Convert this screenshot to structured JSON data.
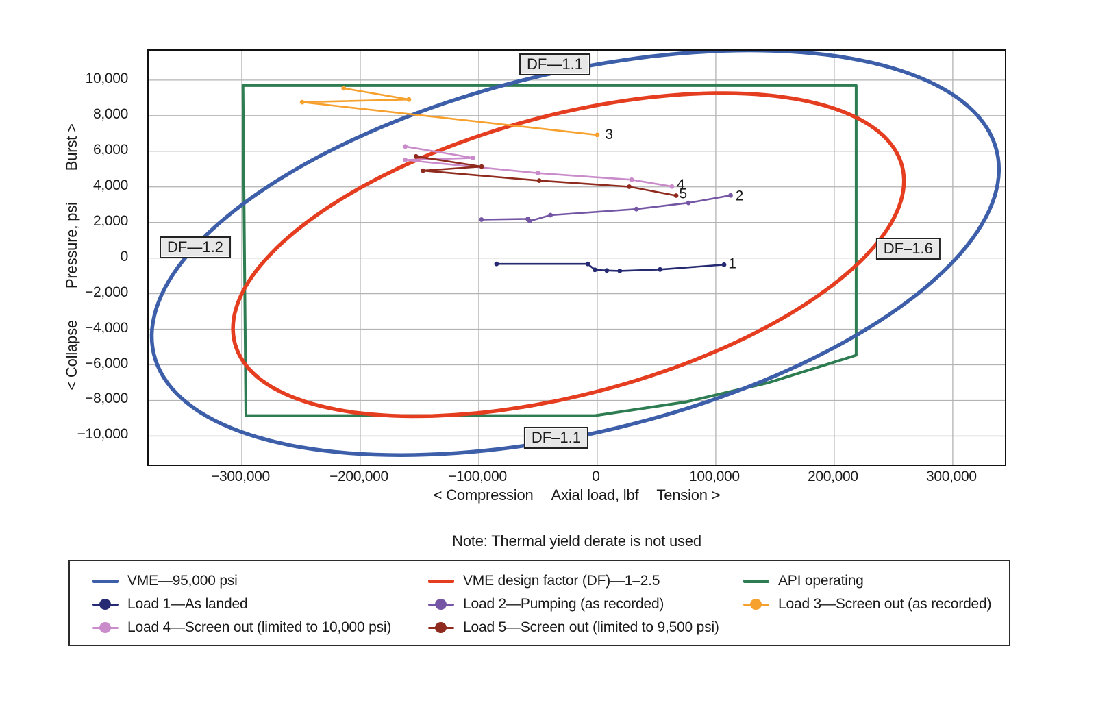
{
  "figure": {
    "note": "Note: Thermal yield derate is not used"
  },
  "axes": {
    "x": {
      "min": -378600,
      "max": 344000,
      "ticks": [
        -300000,
        -200000,
        -100000,
        0,
        100000,
        200000,
        300000
      ],
      "tick_labels": [
        "−300,000",
        "−200,000",
        "−100,000",
        "0",
        "100,000",
        "200,000",
        "300,000"
      ],
      "title_parts": [
        "< Compression",
        "Axial load, lbf",
        "Tension >"
      ]
    },
    "y": {
      "min": -11600,
      "max": 11650,
      "ticks": [
        10000,
        8000,
        6000,
        4000,
        2000,
        0,
        -2000,
        -4000,
        -6000,
        -8000,
        -10000
      ],
      "tick_labels": [
        "10,000",
        "8,000",
        "6,000",
        "4,000",
        "2,000",
        "0",
        "−2,000",
        "−4,000",
        "−6,000",
        "−8,000",
        "−10,000"
      ],
      "title_parts": [
        "< Collapse",
        "Pressure, psi",
        "Burst >"
      ]
    },
    "grid_color": "#b3b3b3"
  },
  "chart_data": {
    "type": "line",
    "title": "",
    "xlabel": "Axial load, lbf",
    "ylabel": "Pressure, psi",
    "xlim": [
      -378600,
      344000
    ],
    "ylim": [
      -11600,
      11650
    ],
    "grid": true,
    "legend_position": "bottom",
    "envelopes": [
      {
        "name": "VME—95,000 psi",
        "color": "#3d5fa9",
        "shape": "ellipse",
        "stroke_width": 5.5,
        "center": [
          -18500,
          300
        ],
        "u": [
          355700,
          5700
        ],
        "v": [
          35600,
          -9835
        ]
      },
      {
        "name": "VME design factor (DF)—1–2.5",
        "color": "#e53d20",
        "shape": "ellipse",
        "stroke_width": 5.5,
        "center": [
          -24300,
          190
        ],
        "u": [
          281500,
          4990
        ],
        "v": [
          30400,
          -7580
        ]
      },
      {
        "name": "API operating",
        "color": "#2e7d52",
        "shape": "polygon",
        "stroke_width": 4,
        "points": [
          [
            -299000,
            9690
          ],
          [
            218500,
            9690
          ],
          [
            218500,
            -5460
          ],
          [
            144500,
            -7000
          ],
          [
            75000,
            -8080
          ],
          [
            -2000,
            -8850
          ],
          [
            -296500,
            -8850
          ]
        ]
      }
    ],
    "loads": [
      {
        "name": "Load 1—As landed",
        "color": "#262a72",
        "end_label": "1",
        "label_at": [
          114000,
          -300
        ],
        "points": [
          [
            -85000,
            -330
          ],
          [
            -8000,
            -330
          ],
          [
            -2000,
            -660
          ],
          [
            8000,
            -700
          ],
          [
            19000,
            -720
          ],
          [
            53000,
            -640
          ],
          [
            107000,
            -370
          ]
        ]
      },
      {
        "name": "Load 2—Pumping (as recorded)",
        "color": "#7456a4",
        "end_label": "2",
        "label_at": [
          120000,
          3500
        ],
        "points": [
          [
            -97700,
            2160
          ],
          [
            -58600,
            2200
          ],
          [
            -57000,
            2080
          ],
          [
            -39500,
            2410
          ],
          [
            33000,
            2750
          ],
          [
            77000,
            3100
          ],
          [
            112500,
            3520
          ]
        ]
      },
      {
        "name": "Load 3—Screen out (as recorded)",
        "color": "#f6a02d",
        "end_label": "3",
        "label_at": [
          10000,
          6950
        ],
        "points": [
          [
            -214000,
            9540
          ],
          [
            -159000,
            8910
          ],
          [
            -249000,
            8760
          ],
          [
            0,
            6920
          ]
        ]
      },
      {
        "name": "Load 4—Screen out (limited to 10,000 psi)",
        "color": "#c98bc9",
        "end_label": "4",
        "label_at": [
          70500,
          4150
        ],
        "points": [
          [
            -162000,
            6270
          ],
          [
            -105000,
            5630
          ],
          [
            -162000,
            5510
          ],
          [
            -50000,
            4770
          ],
          [
            29000,
            4400
          ],
          [
            63000,
            4020
          ]
        ]
      },
      {
        "name": "Load 5—Screen out (limited to 9,500 psi)",
        "color": "#8f2a1e",
        "end_label": "5",
        "label_at": [
          72500,
          3620
        ],
        "points": [
          [
            -153000,
            5710
          ],
          [
            -97600,
            5140
          ],
          [
            -147000,
            4910
          ],
          [
            -49000,
            4350
          ],
          [
            27000,
            4010
          ],
          [
            66500,
            3510
          ]
        ]
      }
    ],
    "annotations": [
      {
        "text": "DF—1.1",
        "x": -35800,
        "y": 10880
      },
      {
        "text": "DF–1.6",
        "x": 262400,
        "y": 540
      },
      {
        "text": "DF–1.1",
        "x": -34700,
        "y": -10080
      },
      {
        "text": "DF—1.2",
        "x": -339300,
        "y": 620
      }
    ]
  },
  "legend": {
    "items": [
      {
        "label": "VME—95,000 psi",
        "color": "#3d5fa9",
        "swatch": "line"
      },
      {
        "label": "VME design factor (DF)—1–2.5",
        "color": "#e53d20",
        "swatch": "line"
      },
      {
        "label": "API operating",
        "color": "#2e7d52",
        "swatch": "line"
      },
      {
        "label": "Load 1—As landed",
        "color": "#262a72",
        "swatch": "marker"
      },
      {
        "label": "Load 2—Pumping (as recorded)",
        "color": "#7456a4",
        "swatch": "marker"
      },
      {
        "label": "Load 3—Screen out (as recorded)",
        "color": "#f6a02d",
        "swatch": "marker"
      },
      {
        "label": "Load 4—Screen out (limited to 10,000 psi)",
        "color": "#c98bc9",
        "swatch": "marker"
      },
      {
        "label": "Load 5—Screen out (limited to 9,500 psi)",
        "color": "#8f2a1e",
        "swatch": "marker"
      }
    ]
  }
}
